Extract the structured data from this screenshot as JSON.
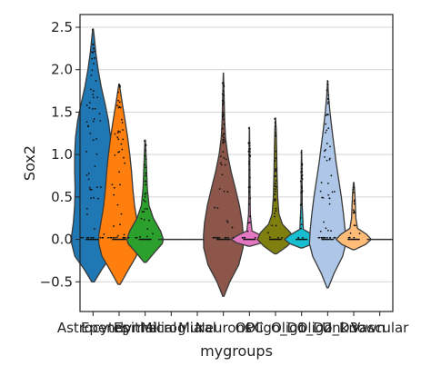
{
  "chart_data": {
    "type": "violin",
    "xlabel": "mygroups",
    "ylabel": "Sox2",
    "ylim": [
      -0.85,
      2.65
    ],
    "yticks": [
      -0.5,
      0.0,
      0.5,
      1.0,
      1.5,
      2.0,
      2.5
    ],
    "ytick_labels": [
      "−0.5",
      "0.0",
      "0.5",
      "1.0",
      "1.5",
      "2.0",
      "2.5"
    ],
    "grid": "horizontal",
    "categories": [
      "Astrocytes",
      "Ependymal",
      "Epithelial",
      "Microglia",
      "Mural",
      "Neurons",
      "OPC",
      "Oligo_D1",
      "Oligo_D2",
      "Oligo_D3",
      "Unknown",
      "Vascular"
    ],
    "tick_labels": [
      "Astrocytes",
      "Ependymal",
      "Epithelial",
      "Microglia",
      "Mural",
      "Neurons",
      "OPC",
      "Oligo_D1",
      "Oligo_D2",
      "Oligo_D3",
      "Unknown",
      "Vascular"
    ],
    "series": [
      {
        "color": "#1f77b4",
        "ymin": -0.5,
        "ymax": 2.48,
        "median": 0.0,
        "density": [
          [
            -0.5,
            0.06
          ],
          [
            -0.35,
            0.42
          ],
          [
            -0.2,
            0.85
          ],
          [
            -0.05,
            1.0
          ],
          [
            0.05,
            1.0
          ],
          [
            0.2,
            0.92
          ],
          [
            0.4,
            0.86
          ],
          [
            0.6,
            0.84
          ],
          [
            0.8,
            0.86
          ],
          [
            1.0,
            0.86
          ],
          [
            1.2,
            0.82
          ],
          [
            1.4,
            0.72
          ],
          [
            1.6,
            0.56
          ],
          [
            1.8,
            0.38
          ],
          [
            2.0,
            0.24
          ],
          [
            2.2,
            0.13
          ],
          [
            2.4,
            0.05
          ],
          [
            2.48,
            0.01
          ]
        ]
      },
      {
        "color": "#ff7f0e",
        "ymin": -0.53,
        "ymax": 1.83,
        "median": 0.0,
        "density": [
          [
            -0.53,
            0.05
          ],
          [
            -0.35,
            0.45
          ],
          [
            -0.2,
            0.8
          ],
          [
            -0.05,
            0.95
          ],
          [
            0.05,
            0.95
          ],
          [
            0.2,
            0.85
          ],
          [
            0.4,
            0.72
          ],
          [
            0.6,
            0.64
          ],
          [
            0.8,
            0.58
          ],
          [
            1.0,
            0.5
          ],
          [
            1.2,
            0.4
          ],
          [
            1.4,
            0.28
          ],
          [
            1.6,
            0.15
          ],
          [
            1.75,
            0.06
          ],
          [
            1.83,
            0.01
          ]
        ]
      },
      {
        "color": "#2ca02c",
        "ymin": -0.27,
        "ymax": 1.17,
        "median": 0.0,
        "density": [
          [
            -0.27,
            0.05
          ],
          [
            -0.15,
            0.45
          ],
          [
            -0.05,
            0.8
          ],
          [
            0.0,
            0.85
          ],
          [
            0.1,
            0.72
          ],
          [
            0.25,
            0.38
          ],
          [
            0.4,
            0.18
          ],
          [
            0.6,
            0.1
          ],
          [
            0.8,
            0.07
          ],
          [
            1.0,
            0.04
          ],
          [
            1.17,
            0.01
          ]
        ]
      },
      {
        "color": "#d62728",
        "ymin": 0.0,
        "ymax": 0.0,
        "median": 0.0,
        "density": []
      },
      {
        "color": "#9467bd",
        "ymin": 0.0,
        "ymax": 0.0,
        "median": 0.0,
        "density": []
      },
      {
        "color": "#8c564b",
        "ymin": -0.67,
        "ymax": 1.96,
        "median": 0.0,
        "density": [
          [
            -0.67,
            0.03
          ],
          [
            -0.5,
            0.3
          ],
          [
            -0.3,
            0.72
          ],
          [
            -0.1,
            0.92
          ],
          [
            0.05,
            0.93
          ],
          [
            0.2,
            0.88
          ],
          [
            0.4,
            0.75
          ],
          [
            0.6,
            0.56
          ],
          [
            0.8,
            0.36
          ],
          [
            1.0,
            0.2
          ],
          [
            1.2,
            0.1
          ],
          [
            1.4,
            0.06
          ],
          [
            1.6,
            0.04
          ],
          [
            1.8,
            0.02
          ],
          [
            1.96,
            0.005
          ]
        ]
      },
      {
        "color": "#e377c2",
        "ymin": -0.08,
        "ymax": 1.32,
        "median": 0.0,
        "density": [
          [
            -0.08,
            0.05
          ],
          [
            -0.04,
            0.6
          ],
          [
            0.0,
            0.85
          ],
          [
            0.04,
            0.6
          ],
          [
            0.1,
            0.12
          ],
          [
            0.3,
            0.04
          ],
          [
            0.6,
            0.025
          ],
          [
            0.9,
            0.02
          ],
          [
            1.1,
            0.015
          ],
          [
            1.32,
            0.005
          ]
        ]
      },
      {
        "color": "#7f7f0f",
        "ymin": -0.17,
        "ymax": 1.43,
        "median": 0.0,
        "density": [
          [
            -0.17,
            0.05
          ],
          [
            -0.08,
            0.55
          ],
          [
            0.0,
            0.85
          ],
          [
            0.08,
            0.7
          ],
          [
            0.18,
            0.32
          ],
          [
            0.3,
            0.16
          ],
          [
            0.5,
            0.1
          ],
          [
            0.8,
            0.07
          ],
          [
            1.1,
            0.05
          ],
          [
            1.3,
            0.03
          ],
          [
            1.43,
            0.005
          ]
        ]
      },
      {
        "color": "#17becf",
        "ymin": -0.1,
        "ymax": 1.05,
        "median": 0.0,
        "density": [
          [
            -0.1,
            0.05
          ],
          [
            -0.05,
            0.55
          ],
          [
            0.0,
            0.8
          ],
          [
            0.05,
            0.55
          ],
          [
            0.12,
            0.08
          ],
          [
            0.4,
            0.03
          ],
          [
            0.7,
            0.02
          ],
          [
            0.9,
            0.015
          ],
          [
            1.05,
            0.005
          ]
        ]
      },
      {
        "color": "#aec7e8",
        "ymin": -0.57,
        "ymax": 1.87,
        "median": 0.0,
        "density": [
          [
            -0.57,
            0.03
          ],
          [
            -0.4,
            0.3
          ],
          [
            -0.2,
            0.7
          ],
          [
            -0.05,
            0.85
          ],
          [
            0.1,
            0.82
          ],
          [
            0.3,
            0.74
          ],
          [
            0.5,
            0.64
          ],
          [
            0.7,
            0.52
          ],
          [
            0.9,
            0.4
          ],
          [
            1.1,
            0.3
          ],
          [
            1.3,
            0.2
          ],
          [
            1.5,
            0.11
          ],
          [
            1.7,
            0.04
          ],
          [
            1.87,
            0.005
          ]
        ]
      },
      {
        "color": "#ffbb78",
        "ymin": -0.12,
        "ymax": 0.67,
        "median": 0.0,
        "density": [
          [
            -0.12,
            0.05
          ],
          [
            -0.06,
            0.55
          ],
          [
            0.0,
            0.82
          ],
          [
            0.06,
            0.6
          ],
          [
            0.13,
            0.18
          ],
          [
            0.25,
            0.1
          ],
          [
            0.4,
            0.08
          ],
          [
            0.55,
            0.05
          ],
          [
            0.67,
            0.01
          ]
        ]
      },
      {
        "color": "#98df8a",
        "ymin": 0.0,
        "ymax": 0.0,
        "median": 0.0,
        "density": []
      }
    ]
  }
}
